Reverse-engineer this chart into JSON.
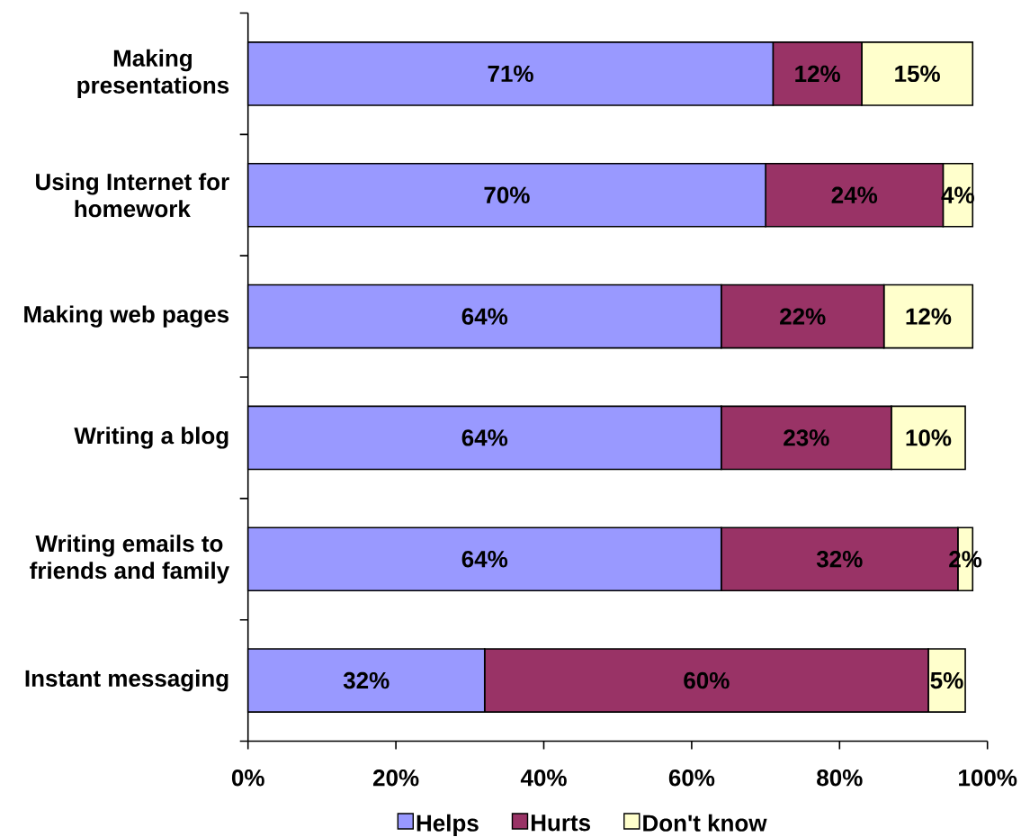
{
  "chart_data": {
    "type": "bar",
    "orientation": "horizontal",
    "stacked": true,
    "categories": [
      "Making presentations",
      "Using Internet for homework",
      "Making web pages",
      "Writing a blog",
      "Writing emails to friends and family",
      "Instant messaging"
    ],
    "series": [
      {
        "name": "Helps",
        "color": "#9999ff",
        "values": [
          71,
          70,
          64,
          64,
          64,
          32
        ],
        "value_labels": [
          "71%",
          "70%",
          "64%",
          "64%",
          "64%",
          "32%"
        ]
      },
      {
        "name": "Hurts",
        "color": "#993366",
        "values": [
          12,
          24,
          22,
          23,
          32,
          60
        ],
        "value_labels": [
          "12%",
          "24%",
          "22%",
          "23%",
          "32%",
          "60%"
        ]
      },
      {
        "name": "Don't know",
        "color": "#ffffcc",
        "values": [
          15,
          4,
          12,
          10,
          2,
          5
        ],
        "value_labels": [
          "15%",
          "4%",
          "12%",
          "10%",
          "2%",
          "5%"
        ]
      }
    ],
    "xlim": [
      0,
      100
    ],
    "xticks": [
      {
        "value": 0,
        "label": "0%"
      },
      {
        "value": 20,
        "label": "20%"
      },
      {
        "value": 40,
        "label": "40%"
      },
      {
        "value": 60,
        "label": "60%"
      },
      {
        "value": 80,
        "label": "80%"
      },
      {
        "value": 100,
        "label": "100%"
      }
    ],
    "legend": "bottom"
  }
}
